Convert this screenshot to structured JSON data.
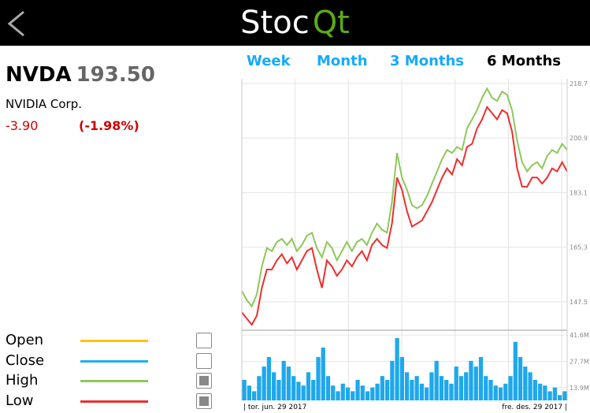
{
  "header": {
    "title_stoc": "Stoc",
    "title_qt": "Qt"
  },
  "stock": {
    "symbol": "NVDA",
    "price": "193.50",
    "name": "NVIDIA Corp.",
    "change": "-3.90",
    "change_percent": "(-1.98%)"
  },
  "tabs": [
    "Week",
    "Month",
    "3 Months",
    "6 Months"
  ],
  "active_tab": 3,
  "legend": [
    {
      "name": "Open",
      "color": "#ffc20e",
      "checked": false
    },
    {
      "name": "Close",
      "color": "#1fb0ec",
      "checked": false
    },
    {
      "name": "High",
      "color": "#8dc85a",
      "checked": true
    },
    {
      "name": "Low",
      "color": "#ee2e2e",
      "checked": true
    }
  ],
  "chart_data": {
    "type": "line",
    "series": [
      {
        "name": "High",
        "color": "#8dc85a",
        "values": [
          151,
          148,
          146,
          150,
          159,
          165,
          164,
          167,
          168,
          166,
          168,
          164,
          166,
          169,
          170,
          165,
          162,
          167,
          165,
          161,
          164,
          167,
          164,
          167,
          168,
          166,
          170,
          173,
          171,
          170,
          180,
          196,
          188,
          184,
          179,
          178,
          179,
          182,
          186,
          190,
          194,
          197,
          196,
          198,
          197,
          204,
          207,
          210,
          214,
          217,
          214,
          213,
          216,
          215,
          210,
          200,
          193,
          190,
          192,
          193,
          191,
          195,
          197,
          196,
          199,
          197
        ]
      },
      {
        "name": "Low",
        "color": "#ee2e2e",
        "values": [
          144,
          142,
          140,
          143,
          152,
          158,
          158,
          161,
          163,
          160,
          162,
          158,
          161,
          164,
          165,
          158,
          152,
          161,
          159,
          156,
          158,
          161,
          159,
          162,
          164,
          161,
          166,
          168,
          166,
          165,
          173,
          188,
          184,
          177,
          172,
          173,
          174,
          177,
          180,
          184,
          188,
          191,
          189,
          194,
          192,
          198,
          199,
          204,
          207,
          211,
          209,
          207,
          210,
          209,
          203,
          191,
          185,
          185,
          188,
          188,
          186,
          188,
          191,
          190,
          193,
          190
        ]
      }
    ],
    "ylim": [
      138.2,
      220.2
    ],
    "yticks": [
      147.5,
      165.3,
      183.1,
      200.9,
      218.7
    ],
    "volume": {
      "color": "#1ea8ec",
      "values": [
        18,
        15,
        12,
        20,
        25,
        30,
        22,
        18,
        28,
        25,
        20,
        17,
        15,
        22,
        18,
        30,
        35,
        20,
        15,
        12,
        16,
        14,
        12,
        18,
        15,
        12,
        14,
        16,
        20,
        18,
        28,
        40,
        30,
        22,
        18,
        20,
        16,
        14,
        22,
        28,
        20,
        18,
        16,
        25,
        20,
        22,
        28,
        25,
        30,
        20,
        18,
        15,
        14,
        16,
        20,
        38,
        30,
        25,
        22,
        18,
        16,
        15,
        12,
        14,
        10,
        12
      ],
      "ylim": [
        7.2,
        43.7
      ],
      "yticks": [
        {
          "value": 13.9,
          "label": "13.9M"
        },
        {
          "value": 27.7,
          "label": "27.7M"
        },
        {
          "value": 41.6,
          "label": "41.6M"
        }
      ]
    },
    "start_label": "| tor. jun. 29 2017",
    "end_label": "fre. des. 29 2017 |"
  }
}
